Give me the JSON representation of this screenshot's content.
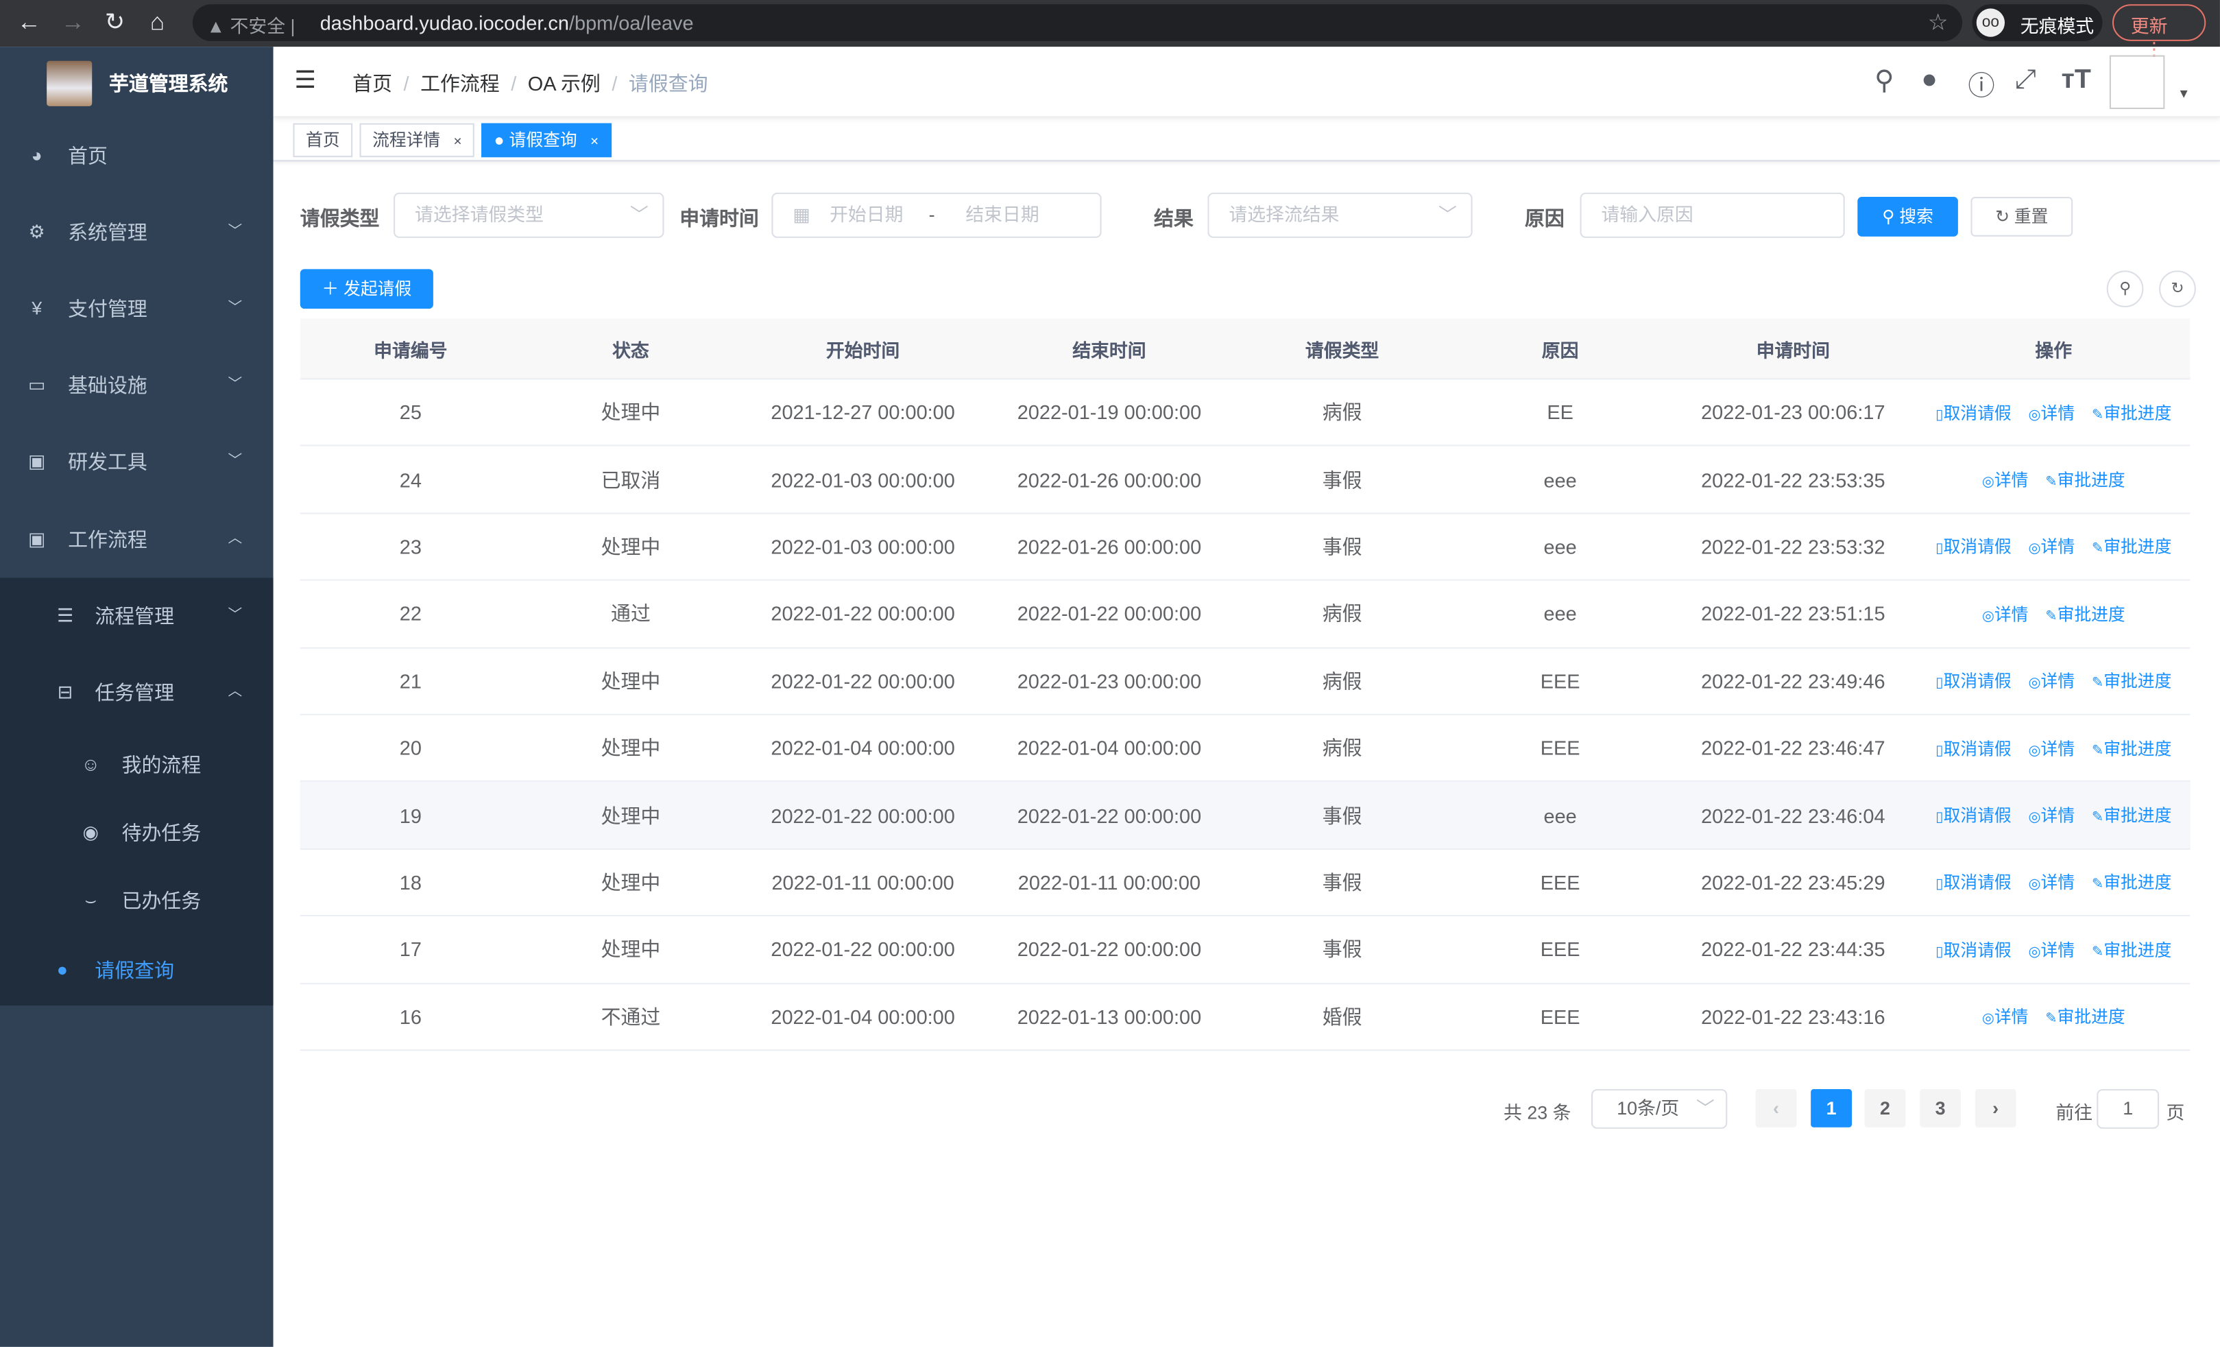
{
  "browser": {
    "security": "不安全",
    "url_host": "dashboard.yudao.iocoder.cn",
    "url_path": "/bpm/oa/leave",
    "incognito": "无痕模式",
    "update": "更新"
  },
  "sidebar": {
    "title": "芋道管理系统",
    "items": [
      {
        "label": "首页",
        "icon": "dashboard-icon"
      },
      {
        "label": "系统管理",
        "icon": "gear-icon"
      },
      {
        "label": "支付管理",
        "icon": "yen-icon"
      },
      {
        "label": "基础设施",
        "icon": "monitor-icon"
      },
      {
        "label": "研发工具",
        "icon": "toolbox-icon"
      },
      {
        "label": "工作流程",
        "icon": "toolbox-icon"
      }
    ],
    "sub": [
      {
        "label": "流程管理"
      },
      {
        "label": "任务管理"
      }
    ],
    "tasks": [
      {
        "label": "我的流程"
      },
      {
        "label": "待办任务"
      },
      {
        "label": "已办任务"
      }
    ],
    "active": "请假查询",
    "active_color": "#409eff"
  },
  "breadcrumb": [
    "首页",
    "工作流程",
    "OA 示例",
    "请假查询"
  ],
  "tags": [
    "首页",
    "流程详情",
    "请假查询"
  ],
  "filters": {
    "type_label": "请假类型",
    "type_placeholder": "请选择请假类型",
    "time_label": "申请时间",
    "start_placeholder": "开始日期",
    "range_sep": "-",
    "end_placeholder": "结束日期",
    "result_label": "结果",
    "result_placeholder": "请选择流结果",
    "reason_label": "原因",
    "reason_placeholder": "请输入原因",
    "search": "搜索",
    "reset": "重置"
  },
  "add_button": "发起请假",
  "table": {
    "headers": [
      "申请编号",
      "状态",
      "开始时间",
      "结束时间",
      "请假类型",
      "原因",
      "申请时间",
      "操作"
    ],
    "rows": [
      [
        "25",
        "处理中",
        "2021-12-27 00:00:00",
        "2022-01-19 00:00:00",
        "病假",
        "EE",
        "2022-01-23 00:06:17"
      ],
      [
        "24",
        "已取消",
        "2022-01-03 00:00:00",
        "2022-01-26 00:00:00",
        "事假",
        "eee",
        "2022-01-22 23:53:35"
      ],
      [
        "23",
        "处理中",
        "2022-01-03 00:00:00",
        "2022-01-26 00:00:00",
        "事假",
        "eee",
        "2022-01-22 23:53:32"
      ],
      [
        "22",
        "通过",
        "2022-01-22 00:00:00",
        "2022-01-22 00:00:00",
        "病假",
        "eee",
        "2022-01-22 23:51:15"
      ],
      [
        "21",
        "处理中",
        "2022-01-22 00:00:00",
        "2022-01-23 00:00:00",
        "病假",
        "EEE",
        "2022-01-22 23:49:46"
      ],
      [
        "20",
        "处理中",
        "2022-01-04 00:00:00",
        "2022-01-04 00:00:00",
        "病假",
        "EEE",
        "2022-01-22 23:46:47"
      ],
      [
        "19",
        "处理中",
        "2022-01-22 00:00:00",
        "2022-01-22 00:00:00",
        "事假",
        "eee",
        "2022-01-22 23:46:04"
      ],
      [
        "18",
        "处理中",
        "2022-01-11 00:00:00",
        "2022-01-11 00:00:00",
        "事假",
        "EEE",
        "2022-01-22 23:45:29"
      ],
      [
        "17",
        "处理中",
        "2022-01-22 00:00:00",
        "2022-01-22 00:00:00",
        "事假",
        "EEE",
        "2022-01-22 23:44:35"
      ],
      [
        "16",
        "不通过",
        "2022-01-04 00:00:00",
        "2022-01-13 00:00:00",
        "婚假",
        "EEE",
        "2022-01-22 23:43:16"
      ]
    ],
    "ops": {
      "cancel": "取消请假",
      "detail": "详情",
      "progress": "审批进度"
    }
  },
  "pagination": {
    "total": "共 23 条",
    "size": "10条/页",
    "pages": [
      "1",
      "2",
      "3"
    ],
    "current": "1",
    "goto": "前往",
    "goto_value": "1",
    "page_suffix": "页"
  }
}
